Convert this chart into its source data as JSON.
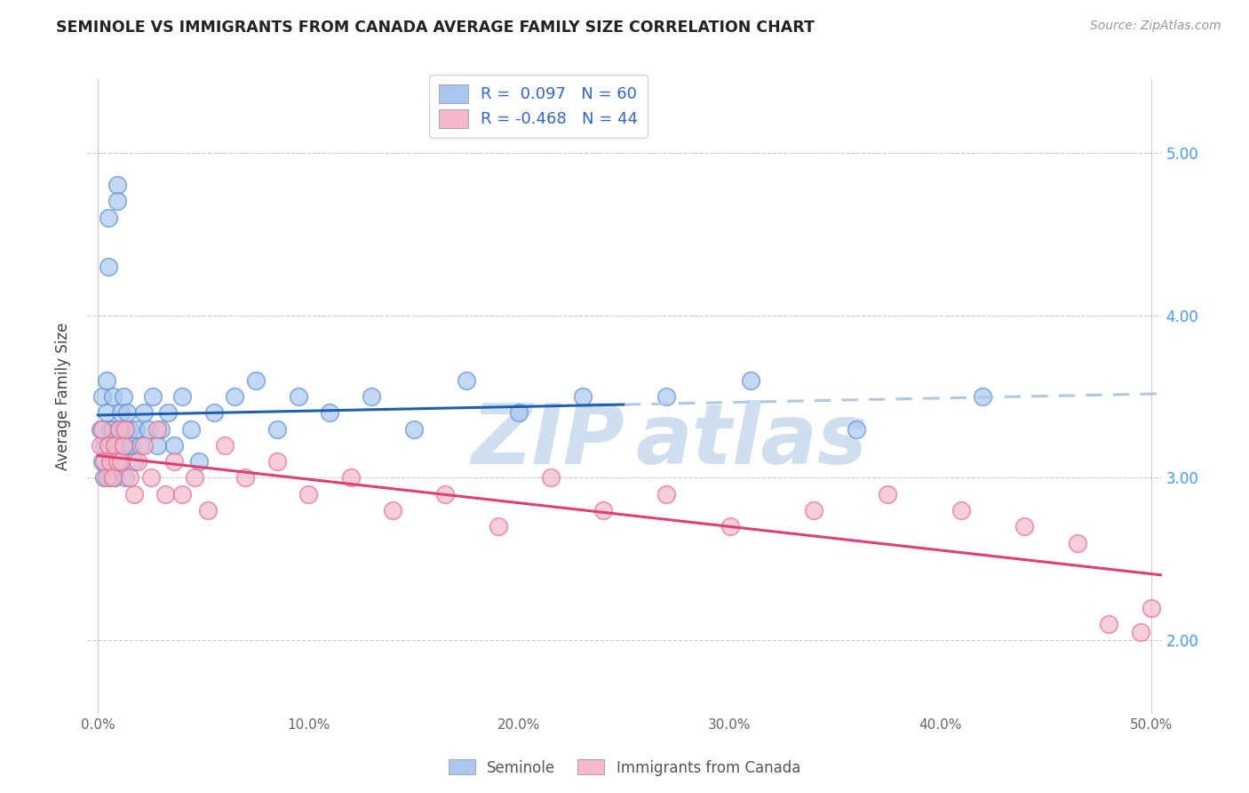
{
  "title": "SEMINOLE VS IMMIGRANTS FROM CANADA AVERAGE FAMILY SIZE CORRELATION CHART",
  "source_text": "Source: ZipAtlas.com",
  "xlabel": "",
  "ylabel": "Average Family Size",
  "xlim": [
    -0.005,
    0.505
  ],
  "ylim": [
    1.55,
    5.45
  ],
  "xtick_labels": [
    "0.0%",
    "10.0%",
    "20.0%",
    "30.0%",
    "40.0%",
    "50.0%"
  ],
  "xtick_values": [
    0.0,
    0.1,
    0.2,
    0.3,
    0.4,
    0.5
  ],
  "ytick_labels": [
    "2.00",
    "3.00",
    "4.00",
    "5.00"
  ],
  "ytick_values": [
    2.0,
    3.0,
    4.0,
    5.0
  ],
  "series1_label": "Seminole",
  "series1_R": 0.097,
  "series1_N": 60,
  "series1_color": "#a8c8f0",
  "series1_edge_color": "#6090d0",
  "series2_label": "Immigrants from Canada",
  "series2_R": -0.468,
  "series2_N": 44,
  "series2_color": "#f5b8cc",
  "series2_edge_color": "#e07090",
  "trend1_color": "#2060b0",
  "trend2_color": "#e04070",
  "trend_dash_color": "#b0c8e8",
  "watermark_color": "#d0dff0",
  "series1_x": [
    0.001,
    0.002,
    0.002,
    0.003,
    0.003,
    0.004,
    0.004,
    0.005,
    0.005,
    0.005,
    0.006,
    0.006,
    0.006,
    0.007,
    0.007,
    0.008,
    0.008,
    0.008,
    0.009,
    0.009,
    0.009,
    0.01,
    0.01,
    0.011,
    0.011,
    0.012,
    0.012,
    0.013,
    0.013,
    0.014,
    0.015,
    0.016,
    0.017,
    0.018,
    0.02,
    0.022,
    0.024,
    0.026,
    0.028,
    0.03,
    0.033,
    0.036,
    0.04,
    0.044,
    0.048,
    0.055,
    0.065,
    0.075,
    0.085,
    0.095,
    0.11,
    0.13,
    0.15,
    0.175,
    0.2,
    0.23,
    0.27,
    0.31,
    0.36,
    0.42
  ],
  "series1_y": [
    3.3,
    3.1,
    3.5,
    3.2,
    3.0,
    3.4,
    3.6,
    4.6,
    4.3,
    3.2,
    3.1,
    3.3,
    3.0,
    3.3,
    3.5,
    3.2,
    3.1,
    3.0,
    4.8,
    4.7,
    3.2,
    3.3,
    3.1,
    3.2,
    3.4,
    3.3,
    3.5,
    3.2,
    3.0,
    3.4,
    3.3,
    3.2,
    3.1,
    3.3,
    3.2,
    3.4,
    3.3,
    3.5,
    3.2,
    3.3,
    3.4,
    3.2,
    3.5,
    3.3,
    3.1,
    3.4,
    3.5,
    3.6,
    3.3,
    3.5,
    3.4,
    3.5,
    3.3,
    3.6,
    3.4,
    3.5,
    3.5,
    3.6,
    3.3,
    3.5
  ],
  "series2_x": [
    0.001,
    0.002,
    0.003,
    0.004,
    0.005,
    0.006,
    0.007,
    0.008,
    0.009,
    0.01,
    0.011,
    0.012,
    0.013,
    0.015,
    0.017,
    0.019,
    0.022,
    0.025,
    0.028,
    0.032,
    0.036,
    0.04,
    0.046,
    0.052,
    0.06,
    0.07,
    0.085,
    0.1,
    0.12,
    0.14,
    0.165,
    0.19,
    0.215,
    0.24,
    0.27,
    0.3,
    0.34,
    0.375,
    0.41,
    0.44,
    0.465,
    0.48,
    0.495,
    0.5
  ],
  "series2_y": [
    3.2,
    3.3,
    3.1,
    3.0,
    3.2,
    3.1,
    3.0,
    3.2,
    3.1,
    3.3,
    3.1,
    3.2,
    3.3,
    3.0,
    2.9,
    3.1,
    3.2,
    3.0,
    3.3,
    2.9,
    3.1,
    2.9,
    3.0,
    2.8,
    3.2,
    3.0,
    3.1,
    2.9,
    3.0,
    2.8,
    2.9,
    2.7,
    3.0,
    2.8,
    2.9,
    2.7,
    2.8,
    2.9,
    2.8,
    2.7,
    2.6,
    2.1,
    2.05,
    2.2
  ],
  "trend1_solid_end": 0.25,
  "trend1_dash_start": 0.25
}
